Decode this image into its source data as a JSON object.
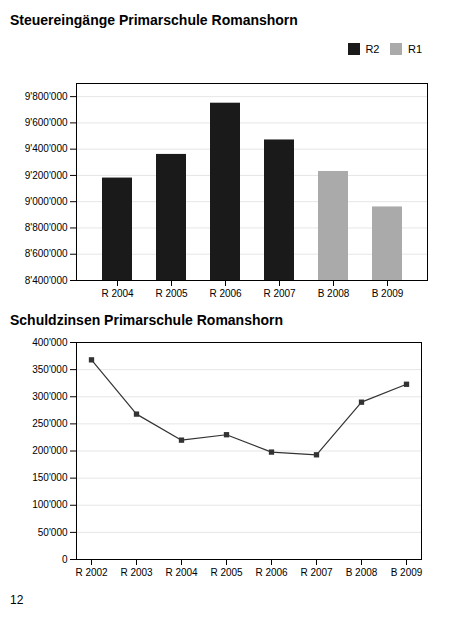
{
  "chart_data": [
    {
      "type": "bar",
      "title": "Steuereingänge Primarschule Romanshorn",
      "categories": [
        "R 2004",
        "R 2005",
        "R 2006",
        "R 2007",
        "B 2008",
        "B 2009"
      ],
      "series": [
        {
          "name": "R2",
          "color": "#1a1a1a",
          "values": [
            9180000,
            9360000,
            9750000,
            9470000,
            null,
            null
          ]
        },
        {
          "name": "R1",
          "color": "#aaaaaa",
          "values": [
            null,
            null,
            null,
            null,
            9230000,
            8960000
          ]
        }
      ],
      "ylim": [
        8400000,
        9900000
      ],
      "yticks": [
        {
          "value": 8400000,
          "label": "8'400'000"
        },
        {
          "value": 8600000,
          "label": "8'600'000"
        },
        {
          "value": 8800000,
          "label": "8'800'000"
        },
        {
          "value": 9000000,
          "label": "9'000'000"
        },
        {
          "value": 9200000,
          "label": "9'200'000"
        },
        {
          "value": 9400000,
          "label": "9'400'000"
        },
        {
          "value": 9600000,
          "label": "9'600'000"
        },
        {
          "value": 9800000,
          "label": "9'800'000"
        }
      ],
      "grid": true,
      "legend": "right"
    },
    {
      "type": "line",
      "title": "Schuldzinsen Primarschule Romanshorn",
      "categories": [
        "R 2002",
        "R 2003",
        "R 2004",
        "R 2005",
        "R 2006",
        "R 2007",
        "B 2008",
        "B 2009"
      ],
      "values": [
        368000,
        268000,
        220000,
        230000,
        198000,
        193000,
        290000,
        323000
      ],
      "color": "#333333",
      "marker": "square",
      "line_style": "solid",
      "ylim": [
        0,
        400000
      ],
      "yticks": [
        0,
        {
          "value": 50000,
          "label": "50'000"
        },
        {
          "value": 100000,
          "label": "100'000"
        },
        {
          "value": 150000,
          "label": "150'000"
        },
        {
          "value": 200000,
          "label": "200'000"
        },
        {
          "value": 250000,
          "label": "250'000"
        },
        {
          "value": 300000,
          "label": "300'000"
        },
        {
          "value": 350000,
          "label": "350'000"
        },
        {
          "value": 400000,
          "label": "400'000"
        }
      ],
      "grid": true,
      "annotations": [
        "12"
      ]
    }
  ]
}
